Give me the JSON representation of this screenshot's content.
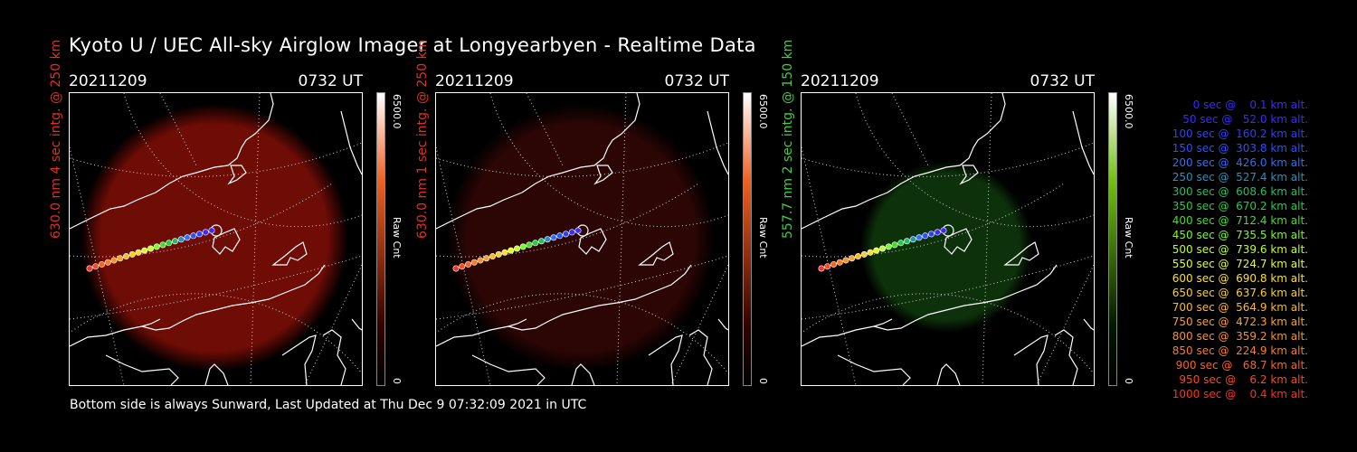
{
  "title": "Kyoto U / UEC All-sky Airglow Imager at Longyearbyen - Realtime Data",
  "footer": "Bottom side is always Sunward, Last Updated at Thu Dec  9 07:32:09 2021 in UTC",
  "panels": [
    {
      "date": "20211209",
      "time": "0732 UT",
      "ylabel": "630.0 nm 4 sec intg. @ 250 km",
      "label_color": "#e03020",
      "glow_color": "#7a0d06",
      "glow_opacity": 0.9,
      "colorbar": {
        "max": "6500.0",
        "min": "0",
        "unit": "Raw Cnt",
        "top_color": "#ffffff",
        "mid_color": "#f06020",
        "bottom_color": "#300000"
      }
    },
    {
      "date": "20211209",
      "time": "0732 UT",
      "ylabel": "630.0 nm 1 sec intg. @ 250 km",
      "label_color": "#e03020",
      "glow_color": "#3a0806",
      "glow_opacity": 0.75,
      "colorbar": {
        "max": "6500.0",
        "min": "0",
        "unit": "Raw Cnt",
        "top_color": "#ffffff",
        "mid_color": "#f06020",
        "bottom_color": "#300000"
      }
    },
    {
      "date": "20211209",
      "time": "0732 UT",
      "ylabel": "557.7 nm 2 sec intg. @ 150 km",
      "label_color": "#40d040",
      "glow_color": "#0f3a0c",
      "glow_opacity": 0.85,
      "colorbar": {
        "max": "6500.0",
        "min": "0",
        "unit": "Raw Cnt",
        "top_color": "#ffffff",
        "mid_color": "#70c010",
        "bottom_color": "#001800"
      }
    }
  ],
  "legend": [
    {
      "text": "   0 sec @    0.1 km alt.",
      "color": "#3a2aff"
    },
    {
      "text": "  50 sec @   52.0 km alt.",
      "color": "#3a2aff"
    },
    {
      "text": " 100 sec @  160.2 km alt.",
      "color": "#2a40ff"
    },
    {
      "text": " 150 sec @  303.8 km alt.",
      "color": "#2a50ff"
    },
    {
      "text": " 200 sec @  426.0 km alt.",
      "color": "#2a70ff"
    },
    {
      "text": " 250 sec @  527.4 km alt.",
      "color": "#2a90c0"
    },
    {
      "text": " 300 sec @  608.6 km alt.",
      "color": "#20c060"
    },
    {
      "text": " 350 sec @  670.2 km alt.",
      "color": "#20d040"
    },
    {
      "text": " 400 sec @  712.4 km alt.",
      "color": "#40e020"
    },
    {
      "text": " 450 sec @  735.5 km alt.",
      "color": "#70ff20"
    },
    {
      "text": " 500 sec @  739.6 km alt.",
      "color": "#c0ff20"
    },
    {
      "text": " 550 sec @  724.7 km alt.",
      "color": "#e0ff20"
    },
    {
      "text": " 600 sec @  690.8 km alt.",
      "color": "#ffe020"
    },
    {
      "text": " 650 sec @  637.6 km alt.",
      "color": "#ffd020"
    },
    {
      "text": " 700 sec @  564.9 km alt.",
      "color": "#ffb820"
    },
    {
      "text": " 750 sec @  472.3 km alt.",
      "color": "#ffa020"
    },
    {
      "text": " 800 sec @  359.2 km alt.",
      "color": "#ff9020"
    },
    {
      "text": " 850 sec @  224.9 km alt.",
      "color": "#ff7a20"
    },
    {
      "text": " 900 sec @   68.7 km alt.",
      "color": "#ff6020"
    },
    {
      "text": " 950 sec @    6.2 km alt.",
      "color": "#ff4820"
    },
    {
      "text": "1000 sec @    0.4 km alt.",
      "color": "#ff3020"
    }
  ]
}
